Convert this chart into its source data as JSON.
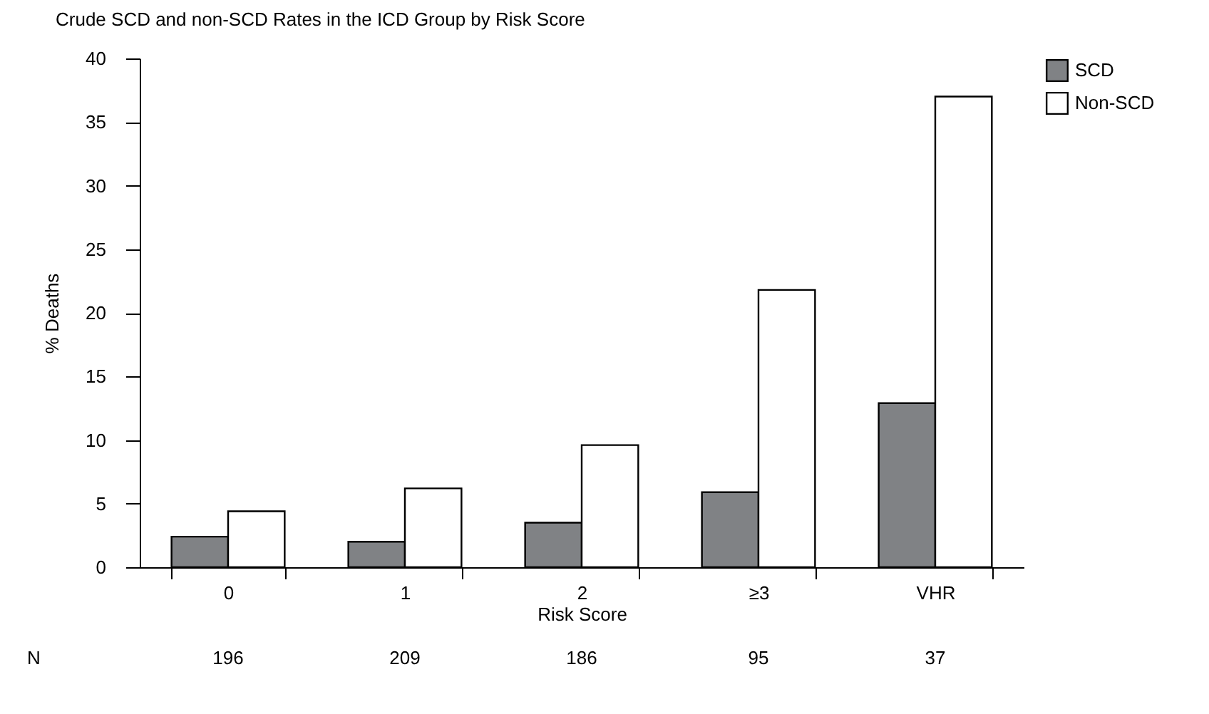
{
  "chart_data": {
    "type": "bar",
    "title": "Crude SCD and non-SCD Rates in the ICD Group by Risk Score",
    "xlabel": "Risk Score",
    "ylabel": "% Deaths",
    "categories": [
      "0",
      "1",
      "2",
      "≥3",
      "VHR"
    ],
    "series": [
      {
        "name": "SCD",
        "color": "#808285",
        "values": [
          2.4,
          2.0,
          3.5,
          5.9,
          12.9
        ]
      },
      {
        "name": "Non-SCD",
        "color": "#ffffff",
        "values": [
          4.4,
          6.2,
          9.6,
          21.8,
          37.0
        ]
      }
    ],
    "ylim": [
      0,
      40
    ],
    "yticks": [
      0,
      5,
      10,
      15,
      20,
      25,
      30,
      35,
      40
    ],
    "grid": false,
    "legend": "right",
    "annotations": [
      "N",
      "196",
      "209",
      "186",
      "95",
      "37"
    ]
  }
}
